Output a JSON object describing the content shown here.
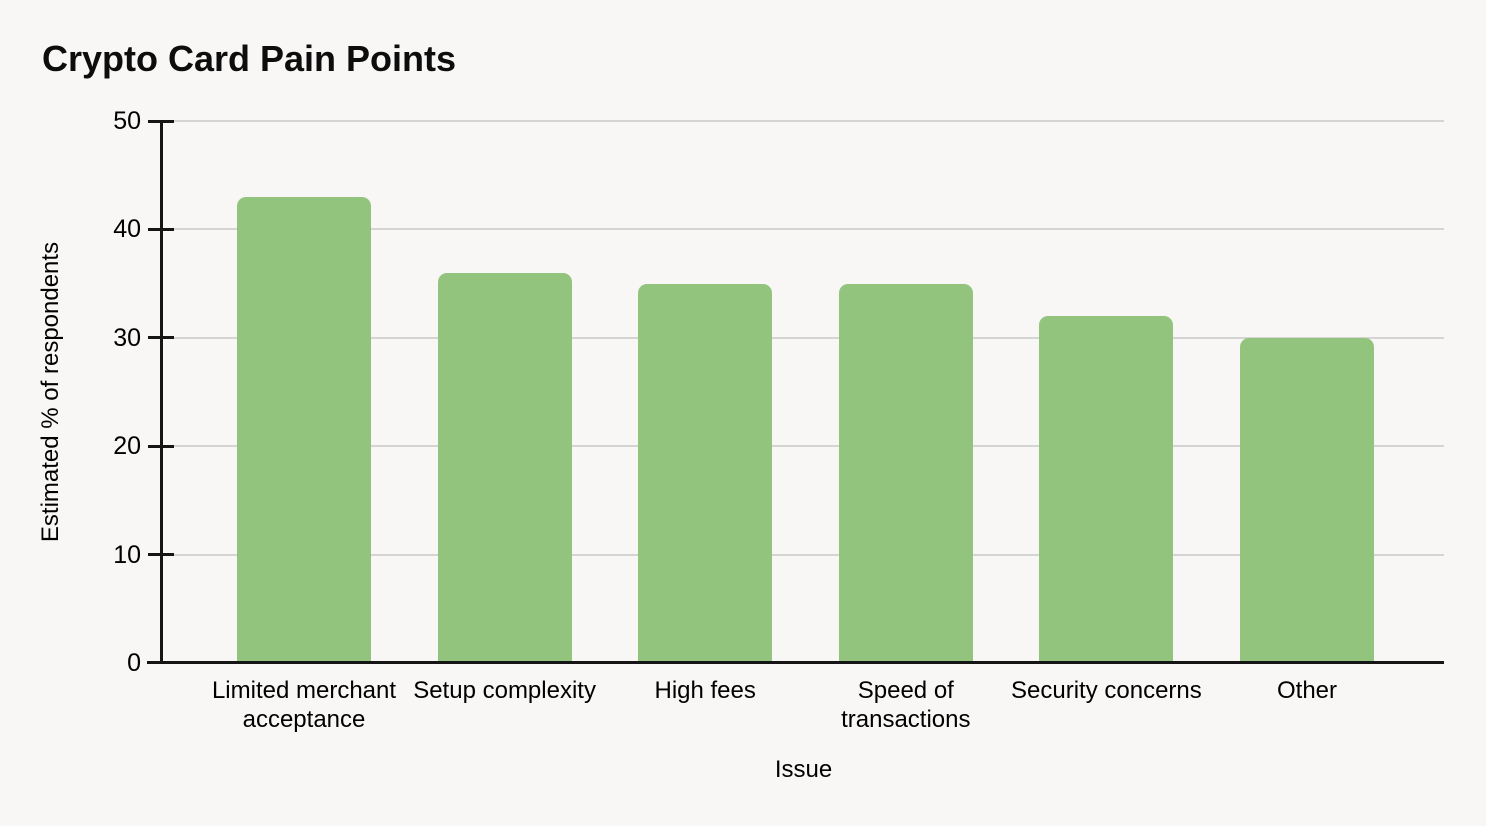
{
  "chart_data": {
    "type": "bar",
    "title": "Crypto Card Pain Points",
    "xlabel": "Issue",
    "ylabel": "Estimated % of respondents",
    "categories": [
      "Limited merchant acceptance",
      "Setup complexity",
      "High fees",
      "Speed of transactions",
      "Security concerns",
      "Other"
    ],
    "values": [
      43,
      36,
      35,
      35,
      32,
      30
    ],
    "ylim": [
      0,
      50
    ],
    "yticks": [
      0,
      10,
      20,
      30,
      40,
      50
    ],
    "grid": true,
    "legend_position": "none",
    "colors": {
      "bar": "#93c47d",
      "gridline": "#d4d4d2",
      "axis": "#151515",
      "text": "#000000",
      "background": "#f8f7f5"
    }
  }
}
